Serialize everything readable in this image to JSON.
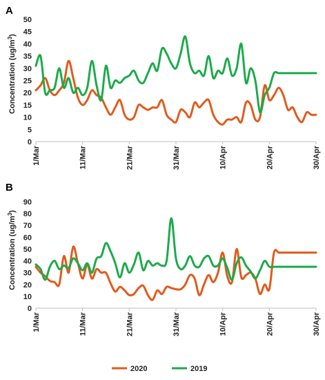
{
  "legend": [
    {
      "name": "2020",
      "color": "#E15A1B"
    },
    {
      "name": "2019",
      "color": "#1BAA4A"
    }
  ],
  "chart_data": [
    {
      "type": "line",
      "panel": "A",
      "ylabel": "Concentration (ug/m3)",
      "ylim": [
        0,
        50
      ],
      "yticks": [
        0,
        5,
        10,
        15,
        20,
        25,
        30,
        35,
        40,
        45,
        50
      ],
      "xlim": [
        1,
        61
      ],
      "xticks": [
        {
          "label": "1/Mar",
          "day": 1
        },
        {
          "label": "11/Mar",
          "day": 11
        },
        {
          "label": "21/Mar",
          "day": 21
        },
        {
          "label": "31/Mar",
          "day": 31
        },
        {
          "label": "10/Apr",
          "day": 41
        },
        {
          "label": "20/Apr",
          "day": 51
        },
        {
          "label": "30/Apr",
          "day": 61
        }
      ],
      "series": [
        {
          "name": "2020",
          "color": "#E15A1B",
          "x": [
            1,
            2,
            3,
            4,
            5,
            6,
            7,
            8,
            9,
            10,
            11,
            12,
            13,
            14,
            15,
            16,
            17,
            18,
            19,
            20,
            21,
            22,
            23,
            24,
            25,
            26,
            27,
            28,
            29,
            30,
            31,
            32,
            33,
            34,
            35,
            36,
            37,
            38,
            39,
            40,
            41,
            42,
            43,
            44,
            45,
            46,
            47,
            48,
            49,
            50,
            51,
            52,
            53,
            54,
            55,
            56,
            57,
            58,
            59,
            60,
            61
          ],
          "values": [
            21,
            23,
            26,
            21,
            19,
            21,
            24,
            33,
            26,
            18,
            15,
            17,
            21,
            19,
            18,
            14,
            11,
            14,
            17,
            11,
            9,
            10,
            15,
            14,
            13,
            14,
            14,
            17,
            11,
            9,
            8,
            13,
            12,
            10,
            16,
            14,
            16,
            17,
            11,
            8,
            7,
            9,
            9,
            10,
            8,
            16,
            15,
            9,
            10,
            23,
            17,
            19,
            22,
            19,
            13,
            14,
            10,
            8,
            12,
            11,
            11
          ]
        },
        {
          "name": "2019",
          "color": "#1BAA4A",
          "x": [
            1,
            2,
            3,
            4,
            5,
            6,
            7,
            8,
            9,
            10,
            11,
            12,
            13,
            14,
            15,
            16,
            17,
            18,
            19,
            20,
            21,
            22,
            23,
            24,
            25,
            26,
            27,
            28,
            29,
            30,
            31,
            32,
            33,
            34,
            35,
            36,
            37,
            38,
            39,
            40,
            41,
            42,
            43,
            44,
            45,
            46,
            47,
            48,
            49,
            50,
            51,
            52,
            53,
            54,
            55,
            56,
            57,
            58,
            59,
            60,
            61
          ],
          "values": [
            31,
            35,
            20,
            21,
            22,
            30,
            22,
            26,
            20,
            22,
            19,
            22,
            33,
            23,
            17,
            31,
            22,
            25,
            24,
            26,
            27,
            29,
            25,
            24,
            28,
            32,
            29,
            38,
            36,
            32,
            30,
            36,
            43,
            32,
            28,
            29,
            27,
            35,
            26,
            29,
            28,
            34,
            27,
            30,
            40,
            24,
            30,
            25,
            12,
            19,
            22,
            28,
            28,
            28,
            28,
            28,
            28,
            28,
            28,
            28,
            28
          ]
        }
      ]
    },
    {
      "type": "line",
      "panel": "B",
      "ylabel": "Concentration (ug/m3)",
      "ylim": [
        0,
        90
      ],
      "yticks": [
        0,
        10,
        20,
        30,
        40,
        50,
        60,
        70,
        80,
        90
      ],
      "xlim": [
        1,
        61
      ],
      "xticks": [
        {
          "label": "1/Mar",
          "day": 1
        },
        {
          "label": "11/Mar",
          "day": 11
        },
        {
          "label": "21/Mar",
          "day": 21
        },
        {
          "label": "31/Mar",
          "day": 31
        },
        {
          "label": "10/Apr",
          "day": 41
        },
        {
          "label": "20/Apr",
          "day": 51
        },
        {
          "label": "30/Apr",
          "day": 61
        }
      ],
      "series": [
        {
          "name": "2020",
          "color": "#E15A1B",
          "x": [
            1,
            2,
            3,
            4,
            5,
            6,
            7,
            8,
            9,
            10,
            11,
            12,
            13,
            14,
            15,
            16,
            17,
            18,
            19,
            20,
            21,
            22,
            23,
            24,
            25,
            26,
            27,
            28,
            29,
            30,
            31,
            32,
            33,
            34,
            35,
            36,
            37,
            38,
            39,
            40,
            41,
            42,
            43,
            44,
            45,
            46,
            47,
            48,
            49,
            50,
            51,
            52,
            53,
            54,
            55,
            56,
            57,
            58,
            59,
            60,
            61
          ],
          "values": [
            35,
            30,
            27,
            23,
            22,
            20,
            44,
            30,
            52,
            38,
            25,
            37,
            25,
            33,
            30,
            30,
            21,
            14,
            18,
            15,
            11,
            12,
            17,
            19,
            11,
            7,
            15,
            12,
            18,
            17,
            16,
            16,
            20,
            28,
            25,
            11,
            20,
            28,
            22,
            30,
            47,
            27,
            22,
            50,
            26,
            28,
            30,
            25,
            12,
            20,
            16,
            47,
            47,
            47,
            47,
            47,
            47,
            47,
            47,
            47,
            47
          ]
        },
        {
          "name": "2019",
          "color": "#1BAA4A",
          "x": [
            1,
            2,
            3,
            4,
            5,
            6,
            7,
            8,
            9,
            10,
            11,
            12,
            13,
            14,
            15,
            16,
            17,
            18,
            19,
            20,
            21,
            22,
            23,
            24,
            25,
            26,
            27,
            28,
            29,
            30,
            31,
            32,
            33,
            34,
            35,
            36,
            37,
            38,
            39,
            40,
            41,
            42,
            43,
            44,
            45,
            46,
            47,
            48,
            49,
            50,
            51,
            52,
            53,
            54,
            55,
            56,
            57,
            58,
            59,
            60,
            61
          ],
          "values": [
            37,
            33,
            24,
            35,
            40,
            33,
            36,
            34,
            42,
            38,
            32,
            38,
            30,
            42,
            44,
            55,
            48,
            38,
            26,
            38,
            30,
            37,
            47,
            32,
            40,
            36,
            38,
            36,
            40,
            76,
            42,
            33,
            36,
            44,
            36,
            35,
            42,
            44,
            36,
            36,
            42,
            34,
            24,
            38,
            43,
            36,
            31,
            25,
            32,
            40,
            35,
            35,
            35,
            35,
            35,
            35,
            35,
            35,
            35,
            35,
            35
          ]
        }
      ]
    }
  ]
}
